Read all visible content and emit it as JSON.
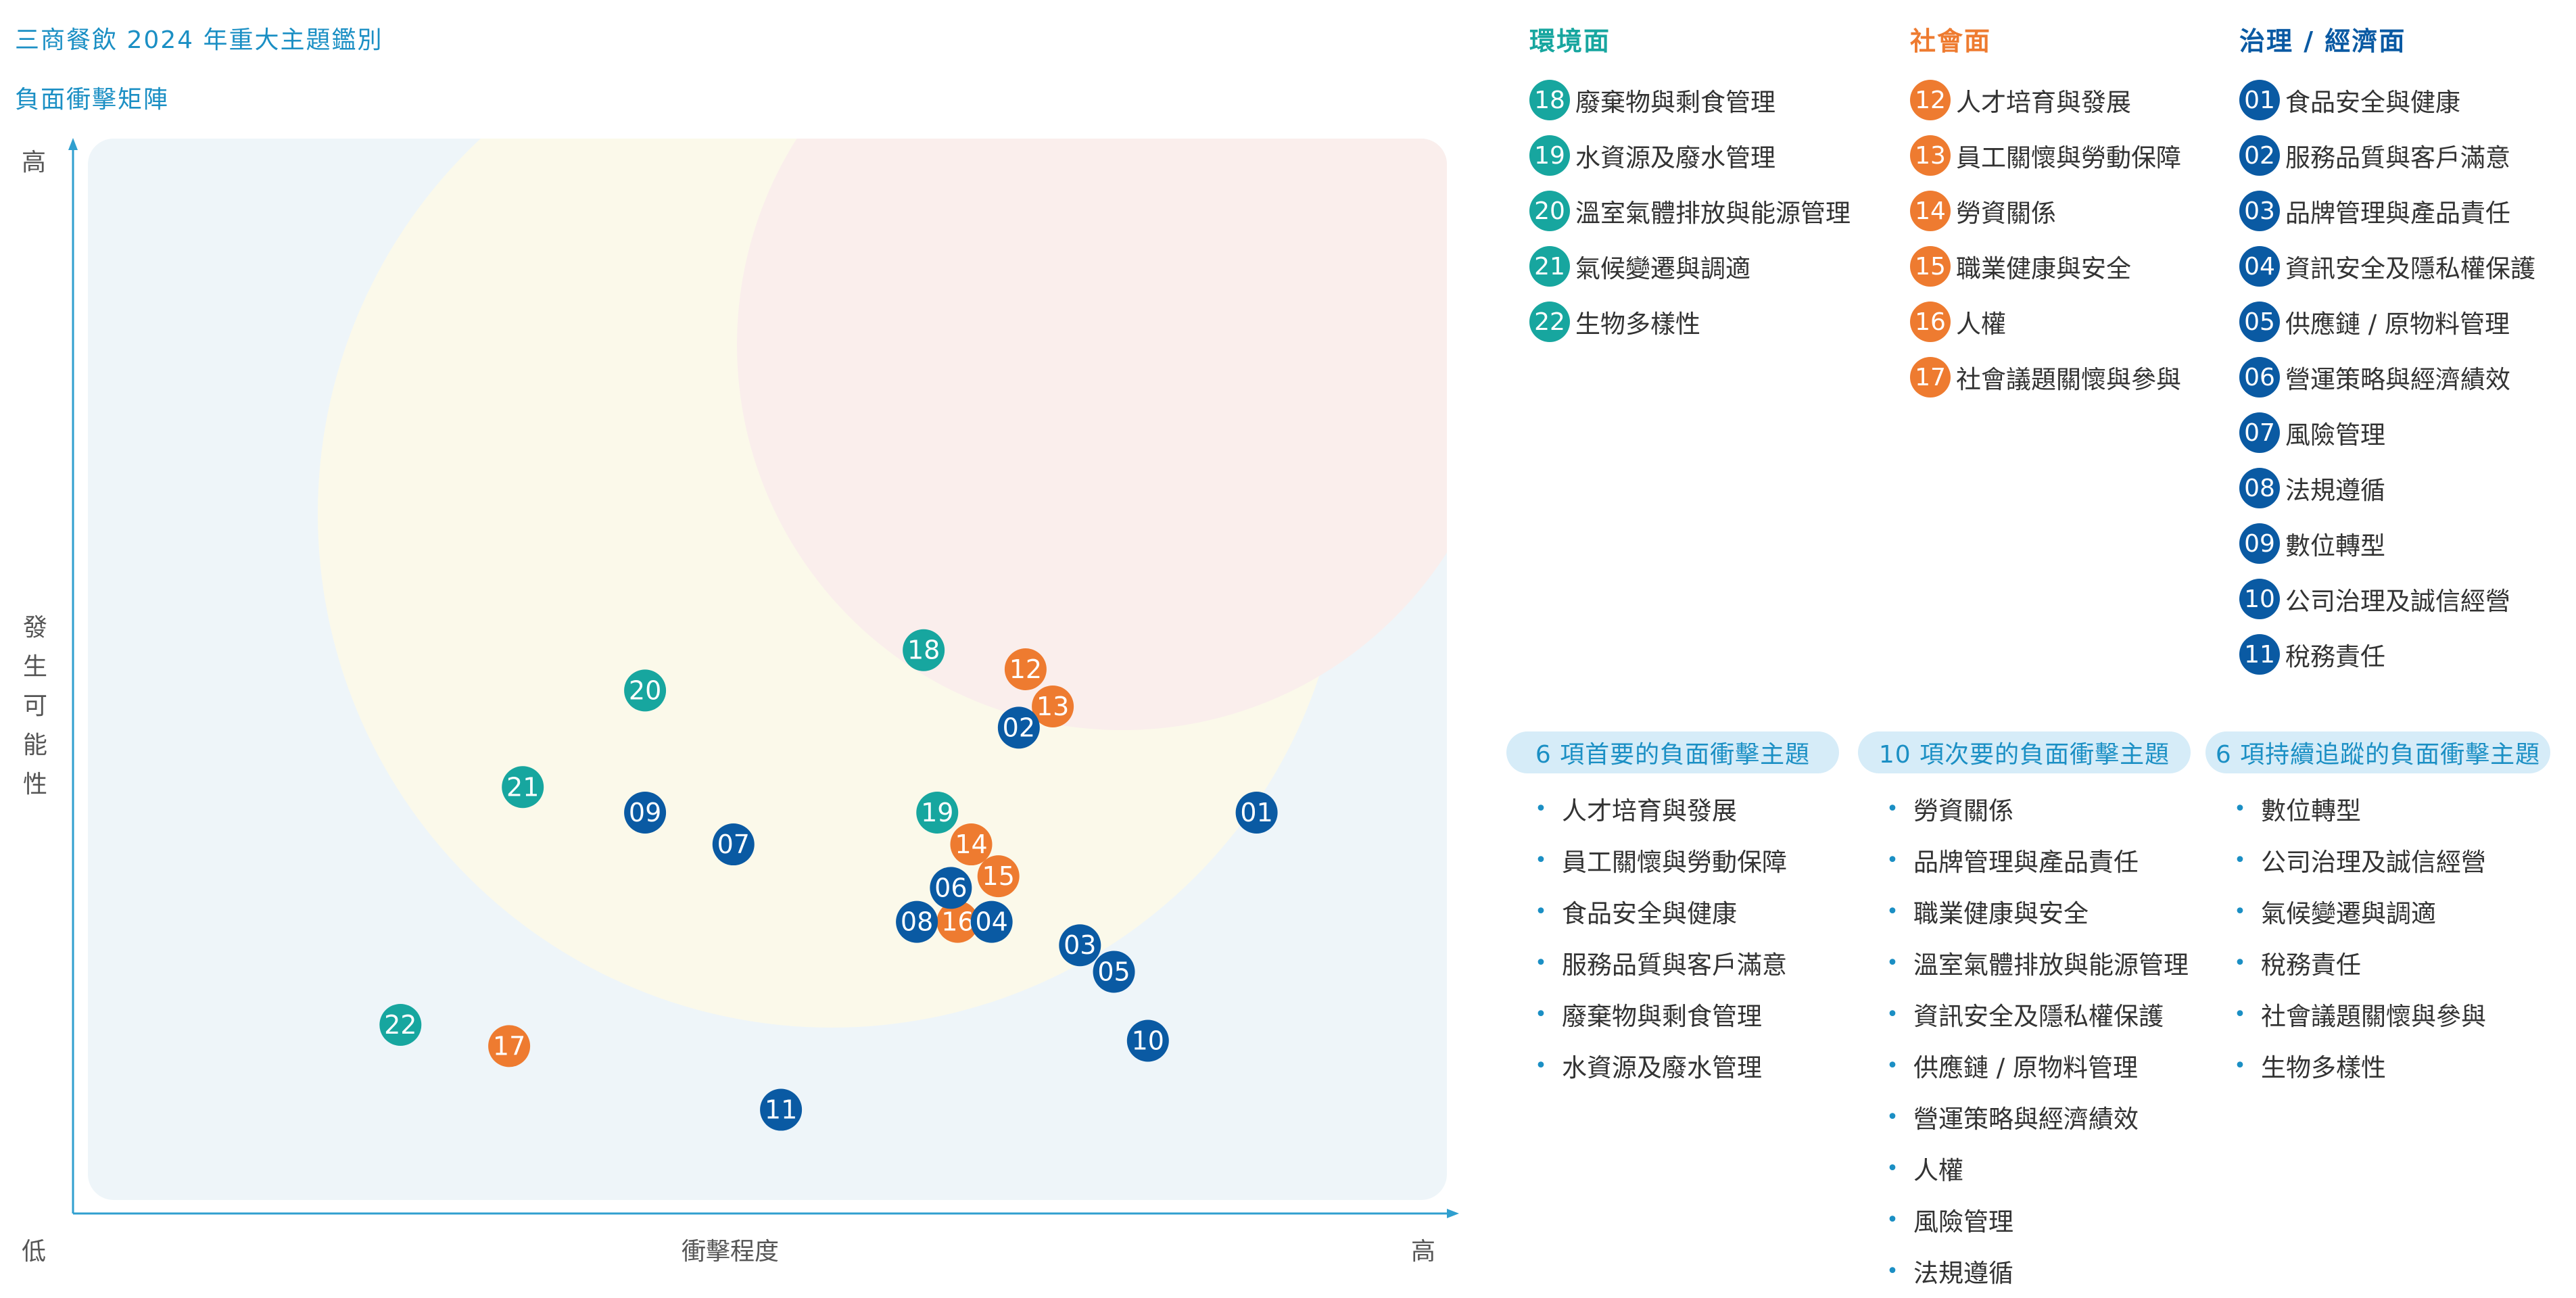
{
  "title": "三商餐飲 2024 年重大主題鑑別",
  "subtitle": "負面衝擊矩陣",
  "colors": {
    "env": "#17a69f",
    "soc": "#ee7b30",
    "gov": "#0a5aa3",
    "accent": "#1b8fc4"
  },
  "categories": [
    {
      "name": "環境面",
      "color": "#17a69f",
      "items": [
        {
          "num": "18",
          "label": "廢棄物與剩食管理"
        },
        {
          "num": "19",
          "label": "水資源及廢水管理"
        },
        {
          "num": "20",
          "label": "溫室氣體排放與能源管理"
        },
        {
          "num": "21",
          "label": "氣候變遷與調適"
        },
        {
          "num": "22",
          "label": "生物多樣性"
        }
      ]
    },
    {
      "name": "社會面",
      "color": "#ee7b30",
      "items": [
        {
          "num": "12",
          "label": "人才培育與發展"
        },
        {
          "num": "13",
          "label": "員工關懷與勞動保障"
        },
        {
          "num": "14",
          "label": "勞資關係"
        },
        {
          "num": "15",
          "label": "職業健康與安全"
        },
        {
          "num": "16",
          "label": "人權"
        },
        {
          "num": "17",
          "label": "社會議題關懷與參與"
        }
      ]
    },
    {
      "name": "治理 / 經濟面",
      "color": "#0a5aa3",
      "items": [
        {
          "num": "01",
          "label": "食品安全與健康"
        },
        {
          "num": "02",
          "label": "服務品質與客戶滿意"
        },
        {
          "num": "03",
          "label": "品牌管理與產品責任"
        },
        {
          "num": "04",
          "label": "資訊安全及隱私權保護"
        },
        {
          "num": "05",
          "label": "供應鏈 / 原物料管理"
        },
        {
          "num": "06",
          "label": "營運策略與經濟績效"
        },
        {
          "num": "07",
          "label": "風險管理"
        },
        {
          "num": "08",
          "label": "法規遵循"
        },
        {
          "num": "09",
          "label": "數位轉型"
        },
        {
          "num": "10",
          "label": "公司治理及誠信經營"
        },
        {
          "num": "11",
          "label": "稅務責任"
        }
      ]
    }
  ],
  "tiers": [
    {
      "title": "6 項首要的負面衝擊主題",
      "items": [
        "人才培育與發展",
        "員工關懷與勞動保障",
        "食品安全與健康",
        "服務品質與客戶滿意",
        "廢棄物與剩食管理",
        "水資源及廢水管理"
      ]
    },
    {
      "title": "10 項次要的負面衝擊主題",
      "items": [
        "勞資關係",
        "品牌管理與產品責任",
        "職業健康與安全",
        "溫室氣體排放與能源管理",
        "資訊安全及隱私權保護",
        "供應鏈 / 原物料管理",
        "營運策略與經濟績效",
        "人權",
        "風險管理",
        "法規遵循"
      ]
    },
    {
      "title": "6 項持續追蹤的負面衝擊主題",
      "items": [
        "數位轉型",
        "公司治理及誠信經營",
        "氣候變遷與調適",
        "稅務責任",
        "社會議題關懷與參與",
        "生物多樣性"
      ]
    }
  ],
  "chart_data": {
    "type": "scatter",
    "title": "負面衝擊矩陣",
    "xlabel": "衝擊程度",
    "ylabel": "發生可能性",
    "x_low": "低",
    "x_high": "高",
    "y_high": "高",
    "xlim": [
      0,
      100
    ],
    "ylim": [
      0,
      100
    ],
    "zones": [
      "首要",
      "次要",
      "持續追蹤"
    ],
    "series": [
      {
        "name": "環境面",
        "color": "#17a69f",
        "points": [
          {
            "label": "18",
            "x": 61.5,
            "y": 51.8
          },
          {
            "label": "19",
            "x": 62.5,
            "y": 36.5
          },
          {
            "label": "20",
            "x": 41.0,
            "y": 48.0
          },
          {
            "label": "21",
            "x": 32.0,
            "y": 38.9
          },
          {
            "label": "22",
            "x": 23.0,
            "y": 16.5
          }
        ]
      },
      {
        "name": "社會面",
        "color": "#ee7b30",
        "points": [
          {
            "label": "12",
            "x": 69.0,
            "y": 50.0
          },
          {
            "label": "13",
            "x": 71.0,
            "y": 46.5
          },
          {
            "label": "14",
            "x": 65.0,
            "y": 33.5
          },
          {
            "label": "15",
            "x": 67.0,
            "y": 30.5
          },
          {
            "label": "16",
            "x": 64.0,
            "y": 26.2
          },
          {
            "label": "17",
            "x": 31.0,
            "y": 14.5
          }
        ]
      },
      {
        "name": "治理 / 經濟面",
        "color": "#0a5aa3",
        "points": [
          {
            "label": "01",
            "x": 86.0,
            "y": 36.5
          },
          {
            "label": "02",
            "x": 68.5,
            "y": 44.5
          },
          {
            "label": "03",
            "x": 73.0,
            "y": 24.0
          },
          {
            "label": "04",
            "x": 66.5,
            "y": 26.2
          },
          {
            "label": "05",
            "x": 75.5,
            "y": 21.5
          },
          {
            "label": "06",
            "x": 63.5,
            "y": 29.4
          },
          {
            "label": "07",
            "x": 47.5,
            "y": 33.5
          },
          {
            "label": "08",
            "x": 61.0,
            "y": 26.2
          },
          {
            "label": "09",
            "x": 41.0,
            "y": 36.5
          },
          {
            "label": "10",
            "x": 78.0,
            "y": 15.0
          },
          {
            "label": "11",
            "x": 51.0,
            "y": 8.5
          }
        ]
      }
    ]
  }
}
